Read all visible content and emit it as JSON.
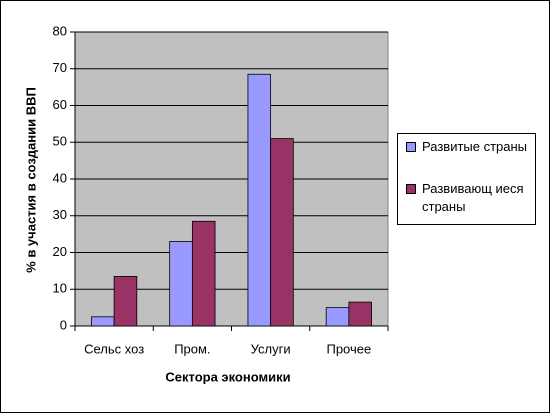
{
  "chart_data": {
    "type": "bar",
    "x_label": "Сектора экономики",
    "y_label": "% в участия в создании ВВП",
    "categories": [
      "Сельс хоз",
      "Пром.",
      "Услуги",
      "Прочее"
    ],
    "series": [
      {
        "name": "Развитые страны",
        "color": "#9999ff",
        "values": [
          2.5,
          23,
          68.5,
          5
        ]
      },
      {
        "name": "Развивающ иеся страны",
        "color": "#993366",
        "values": [
          13.5,
          28.5,
          51,
          6.5
        ]
      }
    ],
    "ylim": [
      0,
      80
    ],
    "yticks": [
      0,
      10,
      20,
      30,
      40,
      50,
      60,
      70,
      80
    ],
    "grid": true
  }
}
